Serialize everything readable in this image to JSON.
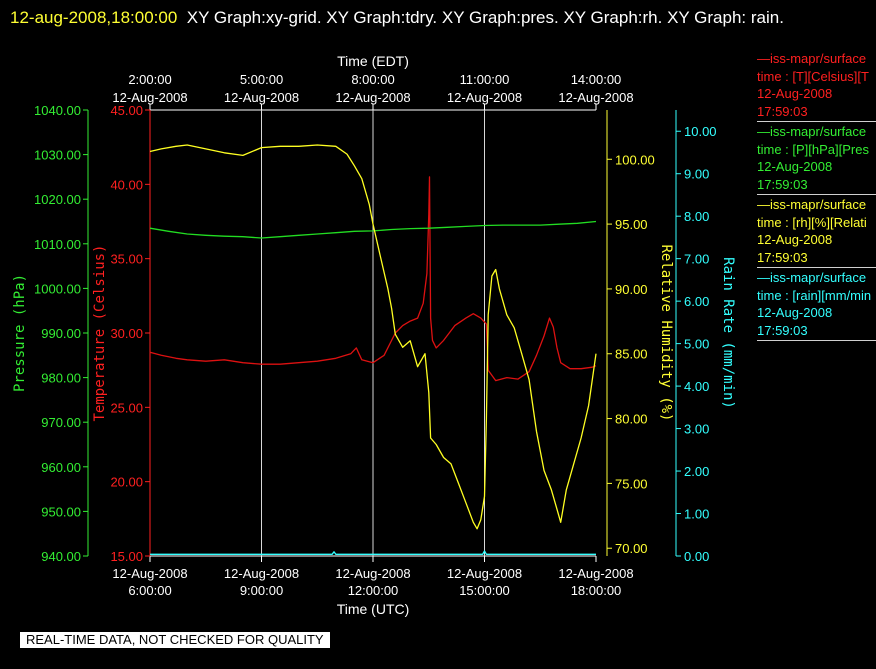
{
  "header": {
    "timestamp": "12-aug-2008,18:00:00",
    "graphs": "XY Graph:xy-grid.  XY Graph:tdry.  XY Graph:pres.  XY Graph:rh.  XY Graph: rain."
  },
  "legend": [
    {
      "line1": "—iss-mapr/surface",
      "line2": "time : [T][Celsius][T",
      "line3": "12-Aug-2008",
      "line4": "17:59:03",
      "color": "#ff2020"
    },
    {
      "line1": "—iss-mapr/surface",
      "line2": "time : [P][hPa][Pres",
      "line3": "12-Aug-2008",
      "line4": "17:59:03",
      "color": "#33ee33"
    },
    {
      "line1": "—iss-mapr/surface",
      "line2": "time : [rh][%][Relati",
      "line3": "12-Aug-2008",
      "line4": "17:59:03",
      "color": "#ffff33"
    },
    {
      "line1": "—iss-mapr/surface",
      "line2": "time : [rain][mm/min",
      "line3": "12-Aug-2008",
      "line4": "17:59:03",
      "color": "#33ffff"
    }
  ],
  "banner": "REAL-TIME DATA, NOT CHECKED FOR QUALITY",
  "chart_data": {
    "type": "line",
    "top_axis": {
      "title": "Time (EDT)",
      "ticks": [
        {
          "time": "2:00:00",
          "date": "12-Aug-2008"
        },
        {
          "time": "5:00:00",
          "date": "12-Aug-2008"
        },
        {
          "time": "8:00:00",
          "date": "12-Aug-2008"
        },
        {
          "time": "11:00:00",
          "date": "12-Aug-2008"
        },
        {
          "time": "14:00:00",
          "date": "12-Aug-2008"
        }
      ]
    },
    "bottom_axis": {
      "title": "Time (UTC)",
      "ticks": [
        {
          "time": "6:00:00",
          "date": "12-Aug-2008"
        },
        {
          "time": "9:00:00",
          "date": "12-Aug-2008"
        },
        {
          "time": "12:00:00",
          "date": "12-Aug-2008"
        },
        {
          "time": "15:00:00",
          "date": "12-Aug-2008"
        },
        {
          "time": "18:00:00",
          "date": "12-Aug-2008"
        }
      ]
    },
    "x_range_utc_hours": [
      6,
      18
    ],
    "grid_x_utc_hours": [
      9,
      12,
      15
    ],
    "axes": {
      "pressure": {
        "label": "Pressure (hPa)",
        "range": [
          940,
          1040
        ],
        "color": "#33ee33",
        "ticks": [
          "940.00",
          "950.00",
          "960.00",
          "970.00",
          "980.00",
          "990.00",
          "1000.00",
          "1010.00",
          "1020.00",
          "1030.00",
          "1040.00"
        ]
      },
      "temperature": {
        "label": "Temperature (Celsius)",
        "range": [
          15,
          45
        ],
        "color": "#ff2020",
        "ticks": [
          "15.00",
          "20.00",
          "25.00",
          "30.00",
          "35.00",
          "40.00",
          "45.00"
        ]
      },
      "humidity": {
        "label": "Relative Humidity (%)",
        "range": [
          69.4,
          103.8
        ],
        "color": "#ffff33",
        "ticks": [
          "70.00",
          "75.00",
          "80.00",
          "85.00",
          "90.00",
          "95.00",
          "100.00"
        ]
      },
      "rain": {
        "label": "Rain Rate (mm/min)",
        "range": [
          0,
          10.5
        ],
        "color": "#33ffff",
        "ticks": [
          "0.00",
          "1.00",
          "2.00",
          "3.00",
          "4.00",
          "5.00",
          "6.00",
          "7.00",
          "8.00",
          "9.00",
          "10.00"
        ]
      }
    },
    "series": [
      {
        "name": "temperature",
        "axis": "temperature",
        "color": "#dd1111",
        "points": [
          [
            6.0,
            28.7
          ],
          [
            6.3,
            28.5
          ],
          [
            6.7,
            28.3
          ],
          [
            7.0,
            28.2
          ],
          [
            7.5,
            28.1
          ],
          [
            8.0,
            28.2
          ],
          [
            8.5,
            28.0
          ],
          [
            9.0,
            27.9
          ],
          [
            9.5,
            27.9
          ],
          [
            10.0,
            28.0
          ],
          [
            10.5,
            28.1
          ],
          [
            11.0,
            28.3
          ],
          [
            11.4,
            28.6
          ],
          [
            11.55,
            29.0
          ],
          [
            11.7,
            28.2
          ],
          [
            12.0,
            28.0
          ],
          [
            12.3,
            28.5
          ],
          [
            12.6,
            30.0
          ],
          [
            12.8,
            30.5
          ],
          [
            13.0,
            30.8
          ],
          [
            13.2,
            31.0
          ],
          [
            13.35,
            32.0
          ],
          [
            13.45,
            34.0
          ],
          [
            13.5,
            38.0
          ],
          [
            13.52,
            40.5
          ],
          [
            13.55,
            31.0
          ],
          [
            13.6,
            29.5
          ],
          [
            13.7,
            29.0
          ],
          [
            13.9,
            29.5
          ],
          [
            14.2,
            30.5
          ],
          [
            14.5,
            31.0
          ],
          [
            14.7,
            31.3
          ],
          [
            14.9,
            31.0
          ],
          [
            15.05,
            30.6
          ],
          [
            15.1,
            27.5
          ],
          [
            15.3,
            26.8
          ],
          [
            15.6,
            27.0
          ],
          [
            15.9,
            26.9
          ],
          [
            16.2,
            27.4
          ],
          [
            16.4,
            28.5
          ],
          [
            16.6,
            29.8
          ],
          [
            16.75,
            31.0
          ],
          [
            16.85,
            30.4
          ],
          [
            16.95,
            29.0
          ],
          [
            17.05,
            28.0
          ],
          [
            17.3,
            27.6
          ],
          [
            17.6,
            27.6
          ],
          [
            17.9,
            27.7
          ],
          [
            18.0,
            27.8
          ]
        ]
      },
      {
        "name": "pressure",
        "axis": "pressure",
        "color": "#22dd22",
        "points": [
          [
            6.0,
            1013.5
          ],
          [
            6.5,
            1012.8
          ],
          [
            7.0,
            1012.2
          ],
          [
            7.5,
            1011.9
          ],
          [
            8.0,
            1011.7
          ],
          [
            8.5,
            1011.6
          ],
          [
            9.0,
            1011.3
          ],
          [
            9.5,
            1011.6
          ],
          [
            10.0,
            1011.9
          ],
          [
            10.5,
            1012.2
          ],
          [
            11.0,
            1012.5
          ],
          [
            11.5,
            1012.8
          ],
          [
            12.0,
            1012.9
          ],
          [
            12.5,
            1013.2
          ],
          [
            13.0,
            1013.4
          ],
          [
            13.5,
            1013.5
          ],
          [
            14.0,
            1013.7
          ],
          [
            14.5,
            1013.9
          ],
          [
            15.0,
            1014.1
          ],
          [
            15.5,
            1014.2
          ],
          [
            16.0,
            1014.2
          ],
          [
            16.5,
            1014.2
          ],
          [
            17.0,
            1014.4
          ],
          [
            17.5,
            1014.6
          ],
          [
            18.0,
            1015.0
          ]
        ]
      },
      {
        "name": "humidity",
        "axis": "humidity",
        "color": "#ffff22",
        "points": [
          [
            6.0,
            100.6
          ],
          [
            6.3,
            100.8
          ],
          [
            6.7,
            101.0
          ],
          [
            7.0,
            101.1
          ],
          [
            7.5,
            100.8
          ],
          [
            8.0,
            100.5
          ],
          [
            8.5,
            100.3
          ],
          [
            9.0,
            100.9
          ],
          [
            9.5,
            101.0
          ],
          [
            10.0,
            101.0
          ],
          [
            10.5,
            101.1
          ],
          [
            11.0,
            101.0
          ],
          [
            11.3,
            100.4
          ],
          [
            11.5,
            99.5
          ],
          [
            11.7,
            98.5
          ],
          [
            11.9,
            96.5
          ],
          [
            12.0,
            95.0
          ],
          [
            12.2,
            92.5
          ],
          [
            12.4,
            90.0
          ],
          [
            12.5,
            88.5
          ],
          [
            12.6,
            86.5
          ],
          [
            12.8,
            85.5
          ],
          [
            13.0,
            86.0
          ],
          [
            13.2,
            84.0
          ],
          [
            13.4,
            85.0
          ],
          [
            13.5,
            82.0
          ],
          [
            13.55,
            78.5
          ],
          [
            13.7,
            78.0
          ],
          [
            13.9,
            77.0
          ],
          [
            14.1,
            76.5
          ],
          [
            14.3,
            75.0
          ],
          [
            14.5,
            73.5
          ],
          [
            14.7,
            72.0
          ],
          [
            14.8,
            71.5
          ],
          [
            14.9,
            72.2
          ],
          [
            15.0,
            74.0
          ],
          [
            15.05,
            80.0
          ],
          [
            15.1,
            88.0
          ],
          [
            15.2,
            91.0
          ],
          [
            15.3,
            91.5
          ],
          [
            15.4,
            90.0
          ],
          [
            15.6,
            88.0
          ],
          [
            15.8,
            87.0
          ],
          [
            16.0,
            85.0
          ],
          [
            16.2,
            83.0
          ],
          [
            16.4,
            79.0
          ],
          [
            16.6,
            76.0
          ],
          [
            16.8,
            74.5
          ],
          [
            16.95,
            73.0
          ],
          [
            17.05,
            72.0
          ],
          [
            17.2,
            74.5
          ],
          [
            17.4,
            76.5
          ],
          [
            17.6,
            78.5
          ],
          [
            17.8,
            81.0
          ],
          [
            17.9,
            83.0
          ],
          [
            18.0,
            85.0
          ]
        ]
      },
      {
        "name": "rain",
        "axis": "rain",
        "color": "#33ffff",
        "points": [
          [
            6.0,
            0.04
          ],
          [
            9.0,
            0.04
          ],
          [
            10.9,
            0.04
          ],
          [
            10.95,
            0.1
          ],
          [
            11.0,
            0.04
          ],
          [
            14.95,
            0.04
          ],
          [
            15.0,
            0.12
          ],
          [
            15.05,
            0.04
          ],
          [
            18.0,
            0.04
          ]
        ]
      }
    ]
  }
}
